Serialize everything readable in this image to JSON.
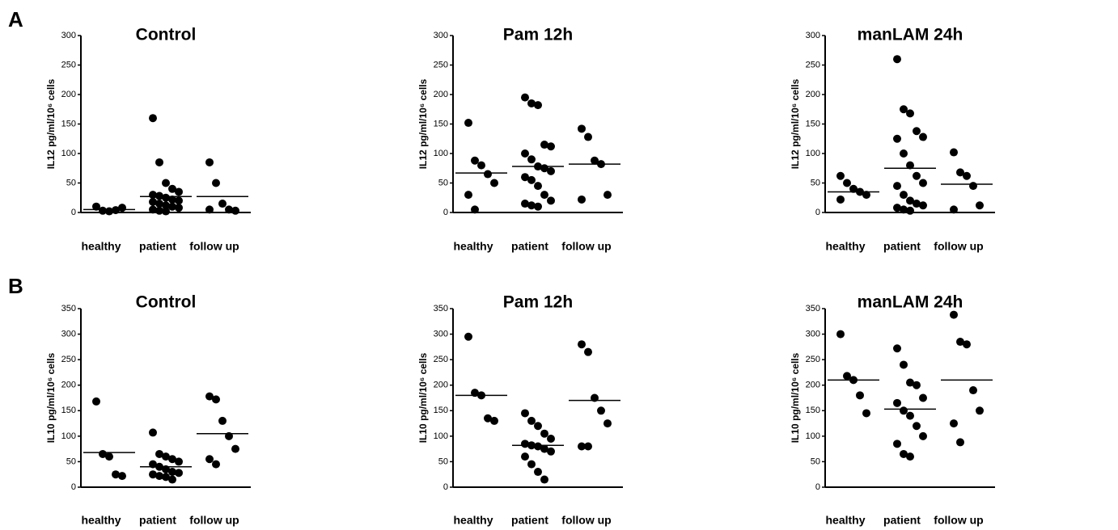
{
  "chart_data": [
    {
      "type": "dot",
      "panel_label": "A",
      "title": "Control",
      "ylabel": "IL12 pg/ml/10⁶ cells",
      "categories": [
        "healthy",
        "patient",
        "follow up"
      ],
      "values": [
        [
          10,
          3,
          2,
          4,
          8
        ],
        [
          160,
          85,
          50,
          40,
          35,
          30,
          28,
          25,
          22,
          20,
          18,
          15,
          12,
          10,
          8,
          5,
          3,
          2
        ],
        [
          85,
          50,
          15,
          5,
          3,
          5
        ]
      ],
      "means": [
        5,
        27,
        27
      ],
      "color": "#000000",
      "ylim": [
        0,
        300
      ],
      "yticks": [
        0,
        50,
        100,
        150,
        200,
        250,
        300
      ]
    },
    {
      "type": "dot",
      "title": "Pam 12h",
      "ylabel": "IL12 pg/ml/10⁶ cells",
      "categories": [
        "healthy",
        "patient",
        "follow up"
      ],
      "values": [
        [
          152,
          88,
          80,
          65,
          50,
          30,
          5
        ],
        [
          195,
          185,
          182,
          115,
          112,
          100,
          90,
          78,
          75,
          70,
          60,
          55,
          45,
          30,
          20,
          15,
          12,
          10
        ],
        [
          142,
          128,
          88,
          82,
          30,
          22
        ]
      ],
      "means": [
        67,
        78,
        82
      ],
      "color": "#000000",
      "ylim": [
        0,
        300
      ],
      "yticks": [
        0,
        50,
        100,
        150,
        200,
        250,
        300
      ]
    },
    {
      "type": "dot",
      "title": "manLAM 24h",
      "ylabel": "IL12 pg/ml/10⁶ cells",
      "categories": [
        "healthy",
        "patient",
        "follow up"
      ],
      "values": [
        [
          62,
          50,
          40,
          35,
          30,
          22
        ],
        [
          260,
          175,
          168,
          138,
          128,
          125,
          100,
          80,
          62,
          50,
          45,
          30,
          20,
          15,
          12,
          8,
          5,
          3
        ],
        [
          102,
          68,
          62,
          45,
          12,
          5
        ]
      ],
      "means": [
        35,
        75,
        48
      ],
      "color": "#000000",
      "ylim": [
        0,
        300
      ],
      "yticks": [
        0,
        50,
        100,
        150,
        200,
        250,
        300
      ]
    },
    {
      "type": "dot",
      "panel_label": "B",
      "title": "Control",
      "ylabel": "IL10 pg/ml/10⁶ cells",
      "categories": [
        "healthy",
        "patient",
        "follow up"
      ],
      "values": [
        [
          168,
          65,
          60,
          25,
          22
        ],
        [
          107,
          65,
          60,
          55,
          50,
          45,
          40,
          35,
          30,
          28,
          25,
          22,
          20,
          15
        ],
        [
          178,
          172,
          130,
          100,
          75,
          55,
          45
        ]
      ],
      "means": [
        68,
        40,
        105
      ],
      "color": "#000000",
      "ylim": [
        0,
        350
      ],
      "yticks": [
        0,
        50,
        100,
        150,
        200,
        250,
        300,
        350
      ]
    },
    {
      "type": "dot",
      "title": "Pam 12h",
      "ylabel": "IL10 pg/ml/10⁶ cells",
      "categories": [
        "healthy",
        "patient",
        "follow up"
      ],
      "values": [
        [
          295,
          185,
          180,
          135,
          130
        ],
        [
          145,
          130,
          120,
          105,
          95,
          85,
          82,
          80,
          75,
          70,
          60,
          45,
          30,
          15
        ],
        [
          280,
          265,
          175,
          150,
          125,
          80,
          80
        ]
      ],
      "means": [
        180,
        82,
        170
      ],
      "color": "#000000",
      "ylim": [
        0,
        350
      ],
      "yticks": [
        0,
        50,
        100,
        150,
        200,
        250,
        300,
        350
      ]
    },
    {
      "type": "dot",
      "title": "manLAM 24h",
      "ylabel": "IL10 pg/ml/10⁶ cells",
      "categories": [
        "healthy",
        "patient",
        "follow up"
      ],
      "values": [
        [
          300,
          218,
          210,
          180,
          145
        ],
        [
          272,
          240,
          205,
          200,
          175,
          165,
          150,
          140,
          120,
          100,
          85,
          65,
          60
        ],
        [
          338,
          285,
          280,
          190,
          150,
          125,
          88
        ]
      ],
      "means": [
        210,
        153,
        210
      ],
      "color": "#000000",
      "ylim": [
        0,
        350
      ],
      "yticks": [
        0,
        50,
        100,
        150,
        200,
        250,
        300,
        350
      ]
    }
  ]
}
